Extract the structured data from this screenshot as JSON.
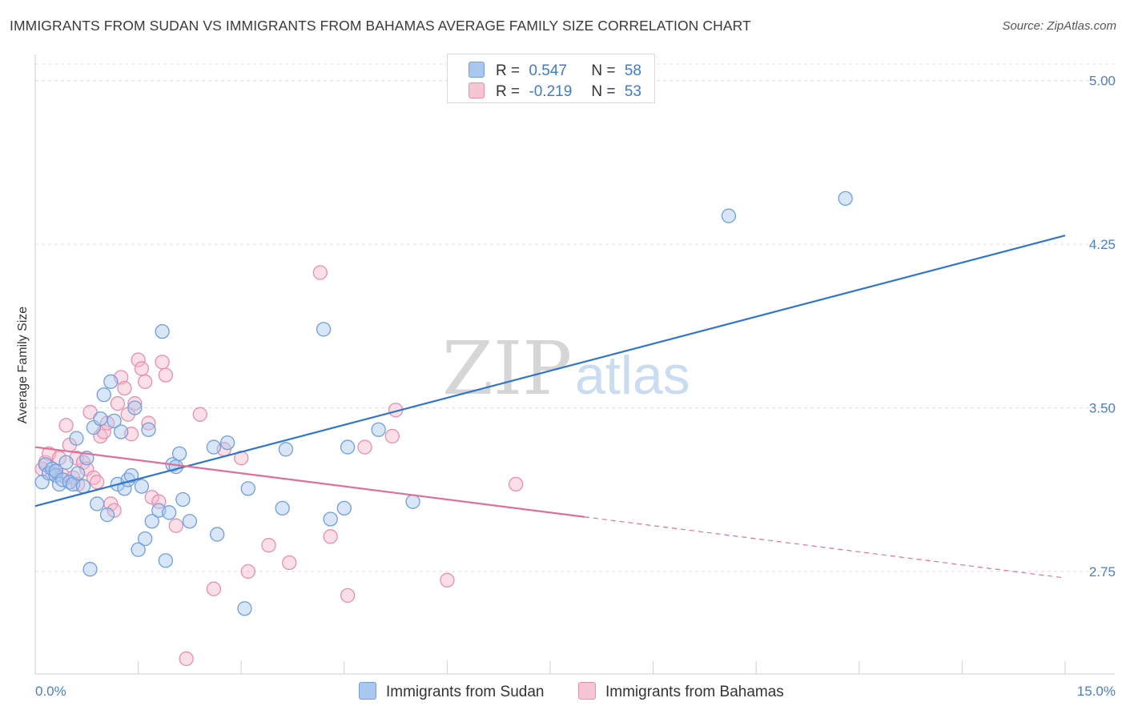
{
  "title": "IMMIGRANTS FROM SUDAN VS IMMIGRANTS FROM BAHAMAS AVERAGE FAMILY SIZE CORRELATION CHART",
  "source": "Source: ZipAtlas.com",
  "watermark": {
    "zip": "ZIP",
    "atlas": "atlas"
  },
  "colors": {
    "sudan_fill": "#a9c7ef",
    "sudan_stroke": "#6f9fdc",
    "sudan_line": "#2e75d0",
    "bahamas_fill": "#f7b9cc",
    "bahamas_stroke": "#e98fab",
    "bahamas_line": "#e06f98",
    "tick": "#4a7fcf",
    "grid": "#dcdcdc"
  },
  "legend": {
    "sudan": {
      "r_label": "R =",
      "r_value": "0.547",
      "n_label": "N =",
      "n_value": "58"
    },
    "bahamas": {
      "r_label": "R =",
      "r_value": "-0.219",
      "n_label": "N =",
      "n_value": "53"
    }
  },
  "bottom_legend": {
    "sudan": "Immigrants from Sudan",
    "bahamas": "Immigrants from Bahamas"
  },
  "chart_data": {
    "type": "scatter",
    "title": "IMMIGRANTS FROM SUDAN VS IMMIGRANTS FROM BAHAMAS AVERAGE FAMILY SIZE CORRELATION CHART",
    "xlabel": "",
    "ylabel": "Average Family Size",
    "xlim": [
      0,
      15
    ],
    "ylim": [
      2.28,
      5.12
    ],
    "x_tick_labels": [
      "0.0%",
      "15.0%"
    ],
    "y_ticks": [
      2.75,
      3.5,
      4.25,
      5.0
    ],
    "y_tick_labels": [
      "2.75",
      "3.50",
      "4.25",
      "5.00"
    ],
    "grid": true,
    "series": [
      {
        "name": "Immigrants from Sudan",
        "trend": {
          "x": [
            0.0,
            15.0
          ],
          "y": [
            3.05,
            4.29
          ]
        },
        "points": [
          [
            0.1,
            3.16
          ],
          [
            0.15,
            3.24
          ],
          [
            0.2,
            3.2
          ],
          [
            0.25,
            3.22
          ],
          [
            0.3,
            3.19
          ],
          [
            0.3,
            3.21
          ],
          [
            0.35,
            3.15
          ],
          [
            0.4,
            3.17
          ],
          [
            0.45,
            3.25
          ],
          [
            0.5,
            3.16
          ],
          [
            0.55,
            3.15
          ],
          [
            0.6,
            3.36
          ],
          [
            0.62,
            3.2
          ],
          [
            0.7,
            3.14
          ],
          [
            0.75,
            3.27
          ],
          [
            0.8,
            2.76
          ],
          [
            0.85,
            3.41
          ],
          [
            0.9,
            3.06
          ],
          [
            0.95,
            3.45
          ],
          [
            1.0,
            3.56
          ],
          [
            1.05,
            3.01
          ],
          [
            1.1,
            3.62
          ],
          [
            1.15,
            3.44
          ],
          [
            1.2,
            3.15
          ],
          [
            1.25,
            3.39
          ],
          [
            1.3,
            3.13
          ],
          [
            1.35,
            3.17
          ],
          [
            1.4,
            3.19
          ],
          [
            1.45,
            3.5
          ],
          [
            1.5,
            2.85
          ],
          [
            1.55,
            3.14
          ],
          [
            1.6,
            2.9
          ],
          [
            1.65,
            3.4
          ],
          [
            1.7,
            2.98
          ],
          [
            1.8,
            3.03
          ],
          [
            1.85,
            3.85
          ],
          [
            1.9,
            2.8
          ],
          [
            1.95,
            3.02
          ],
          [
            2.0,
            3.24
          ],
          [
            2.05,
            3.23
          ],
          [
            2.1,
            3.29
          ],
          [
            2.15,
            3.08
          ],
          [
            2.25,
            2.98
          ],
          [
            2.6,
            3.32
          ],
          [
            2.65,
            2.92
          ],
          [
            2.8,
            3.34
          ],
          [
            3.05,
            2.58
          ],
          [
            3.1,
            3.13
          ],
          [
            3.6,
            3.04
          ],
          [
            3.65,
            3.31
          ],
          [
            4.2,
            3.86
          ],
          [
            4.3,
            2.99
          ],
          [
            4.5,
            3.04
          ],
          [
            4.55,
            3.32
          ],
          [
            5.0,
            3.4
          ],
          [
            5.5,
            3.07
          ],
          [
            10.1,
            4.38
          ],
          [
            11.8,
            4.46
          ]
        ]
      },
      {
        "name": "Immigrants from Bahamas",
        "trend": {
          "x": [
            0.0,
            8.0
          ],
          "y": [
            3.32,
            3.0
          ]
        },
        "trend_dashed": {
          "x": [
            8.0,
            15.0
          ],
          "y": [
            3.0,
            2.72
          ]
        },
        "points": [
          [
            0.1,
            3.22
          ],
          [
            0.15,
            3.25
          ],
          [
            0.2,
            3.29
          ],
          [
            0.25,
            3.2
          ],
          [
            0.3,
            3.21
          ],
          [
            0.35,
            3.27
          ],
          [
            0.4,
            3.19
          ],
          [
            0.45,
            3.42
          ],
          [
            0.5,
            3.33
          ],
          [
            0.55,
            3.18
          ],
          [
            0.6,
            3.27
          ],
          [
            0.62,
            3.15
          ],
          [
            0.7,
            3.25
          ],
          [
            0.75,
            3.22
          ],
          [
            0.8,
            3.48
          ],
          [
            0.85,
            3.18
          ],
          [
            0.9,
            3.16
          ],
          [
            0.95,
            3.37
          ],
          [
            1.0,
            3.39
          ],
          [
            1.05,
            3.43
          ],
          [
            1.1,
            3.06
          ],
          [
            1.15,
            3.03
          ],
          [
            1.2,
            3.52
          ],
          [
            1.25,
            3.64
          ],
          [
            1.3,
            3.59
          ],
          [
            1.35,
            3.47
          ],
          [
            1.4,
            3.38
          ],
          [
            1.45,
            3.52
          ],
          [
            1.5,
            3.72
          ],
          [
            1.55,
            3.68
          ],
          [
            1.6,
            3.62
          ],
          [
            1.65,
            3.43
          ],
          [
            1.7,
            3.09
          ],
          [
            1.8,
            3.07
          ],
          [
            1.85,
            3.71
          ],
          [
            1.9,
            3.65
          ],
          [
            2.05,
            2.96
          ],
          [
            2.2,
            2.35
          ],
          [
            2.4,
            3.47
          ],
          [
            2.6,
            2.67
          ],
          [
            2.75,
            3.31
          ],
          [
            3.0,
            3.27
          ],
          [
            3.1,
            2.75
          ],
          [
            3.4,
            2.87
          ],
          [
            3.7,
            2.79
          ],
          [
            4.15,
            4.12
          ],
          [
            4.3,
            2.91
          ],
          [
            4.55,
            2.64
          ],
          [
            4.8,
            3.32
          ],
          [
            5.2,
            3.37
          ],
          [
            5.25,
            3.49
          ],
          [
            6.0,
            2.71
          ],
          [
            7.0,
            3.15
          ]
        ]
      }
    ]
  }
}
